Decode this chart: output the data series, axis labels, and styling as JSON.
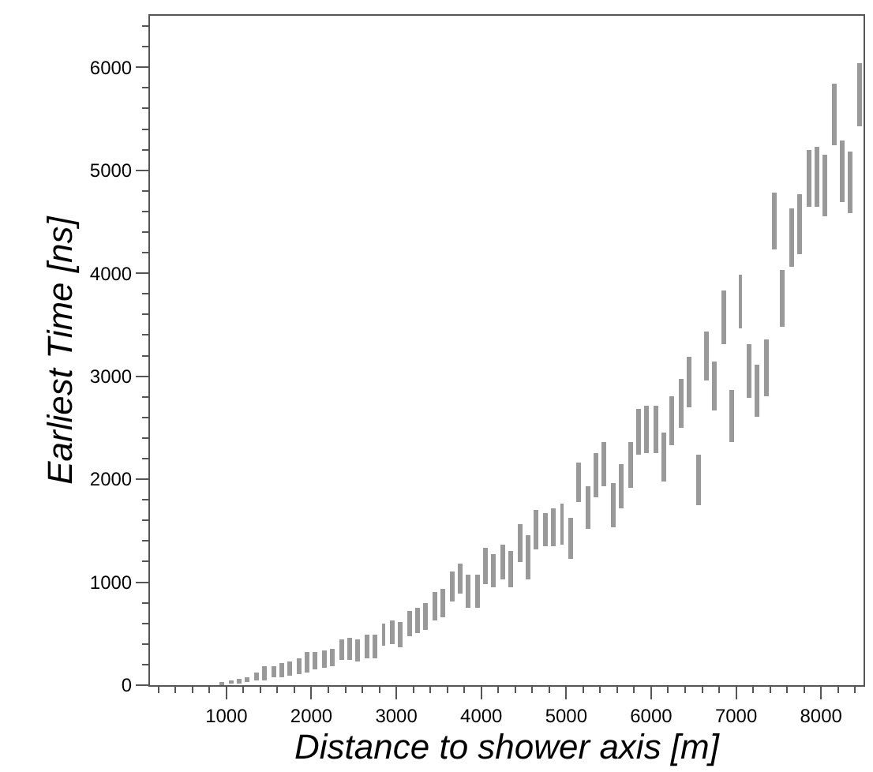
{
  "chart_data": {
    "type": "bar",
    "xlabel": "Distance to shower axis [m]",
    "ylabel": "Earliest Time [ns]",
    "x": [
      950,
      1050,
      1150,
      1250,
      1350,
      1450,
      1550,
      1650,
      1750,
      1850,
      1950,
      2050,
      2150,
      2250,
      2350,
      2450,
      2550,
      2650,
      2750,
      2850,
      2950,
      3050,
      3150,
      3250,
      3350,
      3450,
      3550,
      3650,
      3750,
      3850,
      3950,
      4050,
      4150,
      4250,
      4350,
      4450,
      4550,
      4650,
      4750,
      4850,
      4950,
      5050,
      5150,
      5250,
      5350,
      5450,
      5550,
      5650,
      5750,
      5850,
      5950,
      6050,
      6150,
      6250,
      6350,
      6450,
      6550,
      6650,
      6750,
      6850,
      6950,
      7050,
      7150,
      7250,
      7350,
      7450,
      7550,
      7650,
      7750,
      7850,
      7950,
      8050,
      8150,
      8250,
      8350,
      8450
    ],
    "base": [
      5,
      10,
      15,
      25,
      40,
      50,
      80,
      80,
      90,
      110,
      130,
      155,
      165,
      180,
      250,
      250,
      225,
      265,
      265,
      380,
      400,
      370,
      480,
      505,
      530,
      630,
      660,
      810,
      890,
      750,
      750,
      975,
      955,
      1025,
      955,
      1195,
      1025,
      1320,
      1350,
      1350,
      1370,
      1220,
      1780,
      1525,
      1830,
      1935,
      1535,
      1720,
      1910,
      2240,
      2250,
      2250,
      1985,
      2330,
      2495,
      2700,
      1745,
      2955,
      2660,
      3310,
      2355,
      3465,
      2790,
      2600,
      2810,
      4230,
      3480,
      4070,
      4190,
      4640,
      4650,
      4560,
      5250,
      4690,
      4580,
      5430
    ],
    "values": [
      25,
      35,
      45,
      55,
      90,
      130,
      110,
      140,
      140,
      150,
      190,
      170,
      170,
      170,
      195,
      215,
      220,
      225,
      230,
      220,
      230,
      250,
      245,
      245,
      270,
      270,
      280,
      290,
      290,
      320,
      320,
      355,
      325,
      335,
      345,
      365,
      425,
      385,
      320,
      370,
      395,
      400,
      385,
      400,
      420,
      420,
      425,
      430,
      445,
      445,
      460,
      460,
      470,
      470,
      475,
      485,
      495,
      485,
      490,
      515,
      510,
      525,
      520,
      510,
      540,
      550,
      555,
      560,
      575,
      560,
      585,
      590,
      590,
      600,
      595,
      610
    ],
    "color": "#999999",
    "xlim": [
      100,
      8500
    ],
    "xticks": [
      1000,
      2000,
      3000,
      4000,
      5000,
      6000,
      7000,
      8000
    ],
    "ylim": [
      0,
      6500
    ],
    "yticks": [
      0,
      1000,
      2000,
      3000,
      4000,
      5000,
      6000
    ]
  }
}
